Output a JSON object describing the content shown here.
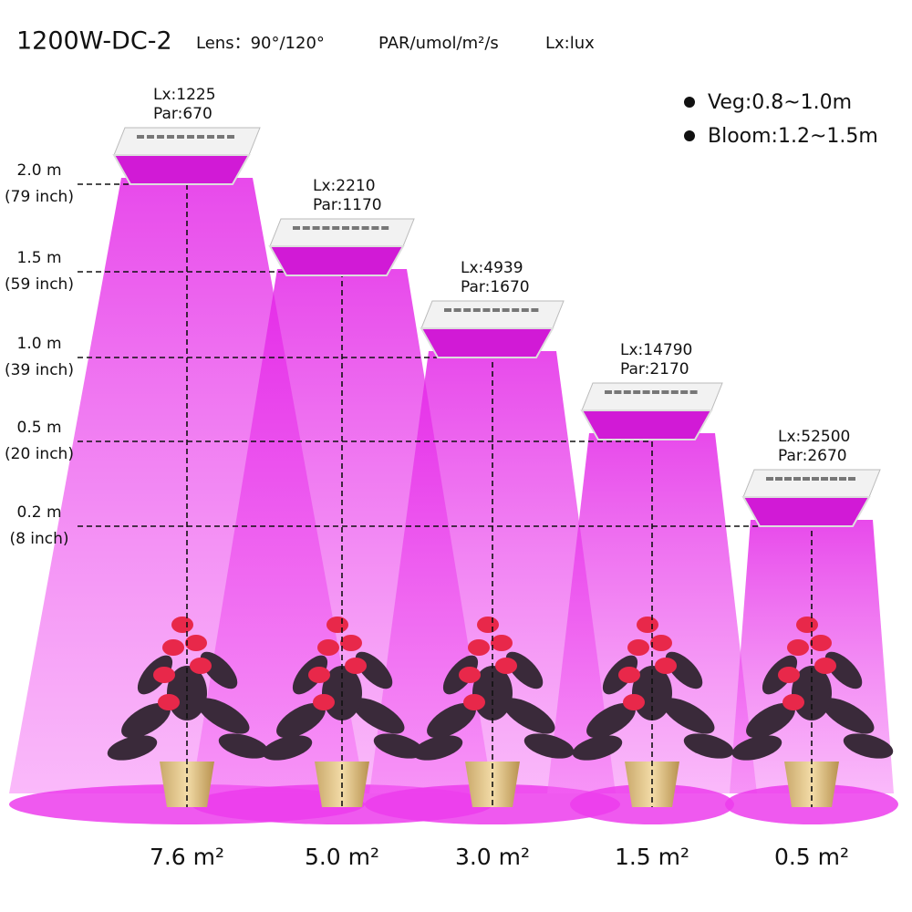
{
  "header": {
    "model": "1200W-DC-2",
    "lens": "Lens：90°/120°",
    "par_unit": "PAR/umol/m²/s",
    "lx_unit": "Lx:lux"
  },
  "legend": [
    {
      "label": "Veg:0.8~1.0m"
    },
    {
      "label": "Bloom:1.2~1.5m"
    }
  ],
  "heights": [
    {
      "meters": "2.0 m",
      "inches": "(79 inch)"
    },
    {
      "meters": "1.5 m",
      "inches": "(59 inch)"
    },
    {
      "meters": "1.0 m",
      "inches": "(39 inch)"
    },
    {
      "meters": "0.5 m",
      "inches": "(20 inch)"
    },
    {
      "meters": "0.2 m",
      "inches": "(8 inch)"
    }
  ],
  "lamps": [
    {
      "lx": "Lx:1225",
      "par": "Par:670",
      "area": "7.6 m²"
    },
    {
      "lx": "Lx:2210",
      "par": "Par:1170",
      "area": "5.0 m²"
    },
    {
      "lx": "Lx:4939",
      "par": "Par:1670",
      "area": "3.0 m²"
    },
    {
      "lx": "Lx:14790",
      "par": "Par:2170",
      "area": "1.5 m²"
    },
    {
      "lx": "Lx:52500",
      "par": "Par:2670",
      "area": "0.5 m²"
    }
  ]
}
